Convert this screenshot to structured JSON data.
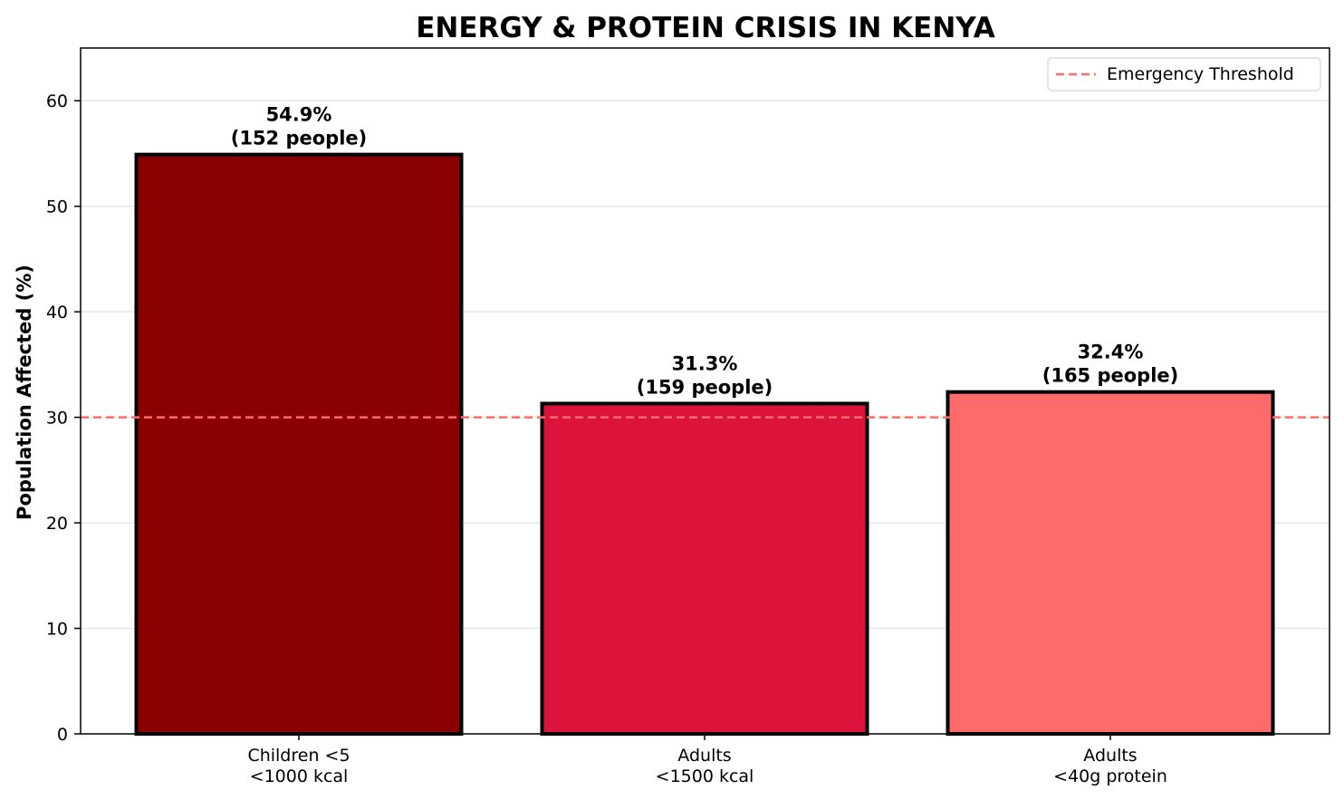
{
  "chart_data": {
    "type": "bar",
    "title": "ENERGY & PROTEIN CRISIS IN KENYA",
    "xlabel": "",
    "ylabel": "Population Affected (%)",
    "ylim": [
      0,
      65
    ],
    "yticks": [
      0,
      10,
      20,
      30,
      40,
      50,
      60
    ],
    "grid": "y",
    "categories": [
      [
        "Children <5",
        "<1000 kcal"
      ],
      [
        "Adults",
        "<1500 kcal"
      ],
      [
        "Adults",
        "<40g protein"
      ]
    ],
    "values": [
      54.9,
      31.3,
      32.4
    ],
    "bar_labels": [
      [
        "54.9%",
        "(152 people)"
      ],
      [
        "31.3%",
        "(159 people)"
      ],
      [
        "32.4%",
        "(165 people)"
      ]
    ],
    "colors": [
      "#8b0000",
      "#dc143c",
      "#ff6b6b"
    ],
    "bar_edge_color": "#000000",
    "reference_line": {
      "y": 30,
      "label": "Emergency Threshold",
      "color": "#ff6b6b",
      "style": "dashed"
    },
    "legend_placement": "top-right"
  }
}
